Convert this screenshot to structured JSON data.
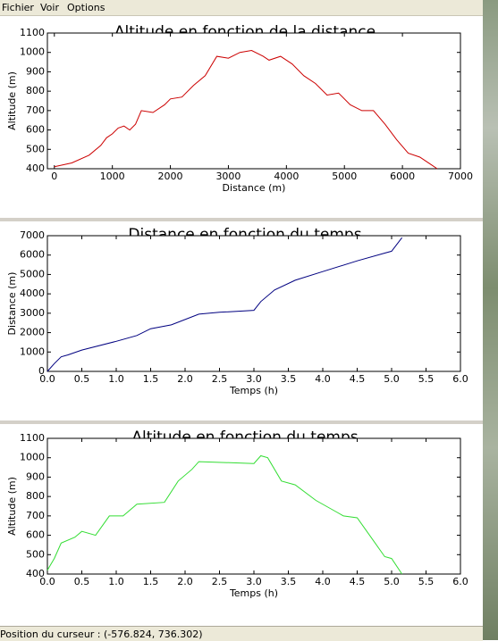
{
  "menu": [
    "Fichier",
    "Voir",
    "Options"
  ],
  "status": "Position du curseur : (-576.824, 736.302)",
  "chart_data": [
    {
      "type": "line",
      "title": "Altitude en fonction de la distance",
      "x_label": "Distance (m)",
      "y_label": "Altitude (m)",
      "color": "#cc0000",
      "x": [
        0,
        300,
        600,
        800,
        900,
        1000,
        1100,
        1200,
        1300,
        1400,
        1500,
        1700,
        1900,
        2000,
        2200,
        2400,
        2600,
        2800,
        3000,
        3200,
        3400,
        3600,
        3700,
        3900,
        4100,
        4300,
        4500,
        4700,
        4900,
        5100,
        5300,
        5500,
        5700,
        5900,
        6100,
        6300,
        6500,
        6600
      ],
      "values": [
        410,
        430,
        470,
        520,
        560,
        580,
        610,
        620,
        600,
        630,
        700,
        690,
        730,
        760,
        770,
        830,
        880,
        980,
        970,
        1000,
        1010,
        980,
        960,
        980,
        940,
        880,
        840,
        780,
        790,
        730,
        700,
        700,
        630,
        550,
        480,
        460,
        420,
        400
      ],
      "xlim": [
        -120,
        7000
      ],
      "xticks": [
        0,
        1000,
        2000,
        3000,
        4000,
        5000,
        6000,
        7000
      ],
      "ylim": [
        400,
        1100
      ],
      "yticks": [
        400,
        500,
        600,
        700,
        800,
        900,
        1000,
        1100
      ]
    },
    {
      "type": "line",
      "title": "Distance en fonction du temps",
      "x_label": "Temps (h)",
      "y_label": "Distance (m)",
      "color": "#000080",
      "x": [
        0,
        0.1,
        0.2,
        0.3,
        0.5,
        1.0,
        1.3,
        1.5,
        1.8,
        2.2,
        2.5,
        3.0,
        3.1,
        3.3,
        3.6,
        4.0,
        4.5,
        4.9,
        5.0,
        5.15
      ],
      "values": [
        0,
        400,
        750,
        850,
        1100,
        1550,
        1850,
        2200,
        2400,
        2950,
        3050,
        3150,
        3600,
        4200,
        4700,
        5150,
        5700,
        6100,
        6200,
        6900
      ],
      "xlim": [
        0,
        6
      ],
      "xticks": [
        {
          "value": 0,
          "label": "0.0"
        },
        0.5,
        {
          "value": 1,
          "label": "1.0"
        },
        1.5,
        {
          "value": 2,
          "label": "2.0"
        },
        2.5,
        {
          "value": 3,
          "label": "3.0"
        },
        3.5,
        {
          "value": 4,
          "label": "4.0"
        },
        4.5,
        {
          "value": 5,
          "label": "5.0"
        },
        5.5,
        {
          "value": 6,
          "label": "6.0"
        }
      ],
      "ylim": [
        0,
        7000
      ],
      "yticks": [
        0,
        1000,
        2000,
        3000,
        4000,
        5000,
        6000,
        7000
      ]
    },
    {
      "type": "line",
      "title": "Altitude en fonction du temps",
      "x_label": "Temps (h)",
      "y_label": "Altitude (m)",
      "color": "#33dd33",
      "x": [
        0,
        0.1,
        0.2,
        0.4,
        0.5,
        0.7,
        0.9,
        1.1,
        1.3,
        1.7,
        1.9,
        2.1,
        2.2,
        3.0,
        3.1,
        3.2,
        3.4,
        3.6,
        3.9,
        4.2,
        4.3,
        4.5,
        4.7,
        4.9,
        5.0,
        5.15
      ],
      "values": [
        420,
        480,
        560,
        590,
        620,
        600,
        700,
        700,
        760,
        770,
        880,
        940,
        980,
        970,
        1010,
        1000,
        880,
        860,
        780,
        720,
        700,
        690,
        590,
        490,
        480,
        400
      ],
      "xlim": [
        0,
        6
      ],
      "xticks": [
        {
          "value": 0,
          "label": "0.0"
        },
        0.5,
        {
          "value": 1,
          "label": "1.0"
        },
        1.5,
        {
          "value": 2,
          "label": "2.0"
        },
        2.5,
        {
          "value": 3,
          "label": "3.0"
        },
        3.5,
        {
          "value": 4,
          "label": "4.0"
        },
        4.5,
        {
          "value": 5,
          "label": "5.0"
        },
        5.5,
        {
          "value": 6,
          "label": "6.0"
        }
      ],
      "ylim": [
        400,
        1100
      ],
      "yticks": [
        400,
        500,
        600,
        700,
        800,
        900,
        1000,
        1100
      ]
    }
  ]
}
